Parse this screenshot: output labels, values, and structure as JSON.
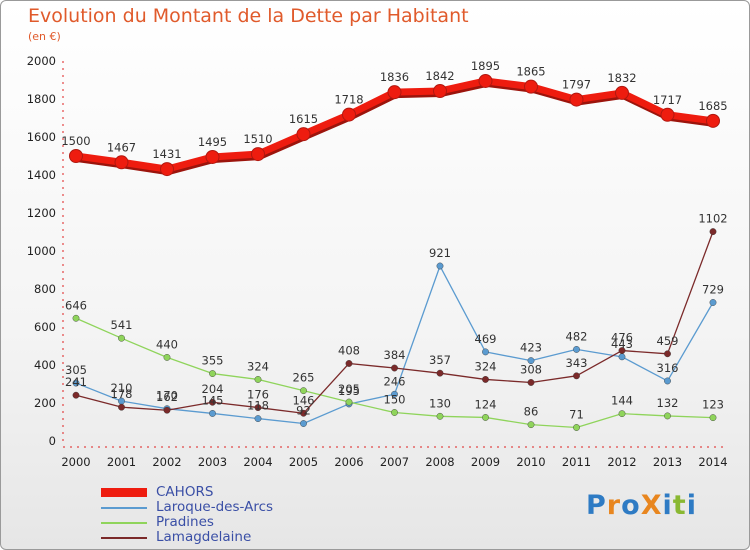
{
  "header": {
    "title": "Evolution du Montant de la Dette par Habitant",
    "unit": "(en €)"
  },
  "logo": {
    "text": "ProXiti",
    "colors": [
      "#2e7bc4",
      "#e8861f",
      "#2e7bc4",
      "#e8861f",
      "#2e7bc4",
      "#8ab832",
      "#2e7bc4"
    ]
  },
  "chart_data": {
    "type": "line",
    "title": "Evolution du Montant de la Dette par Habitant",
    "ylabel": "(en €)",
    "xlabel": "",
    "ylim": [
      0,
      2000
    ],
    "yticks": [
      0,
      200,
      400,
      600,
      800,
      1000,
      1200,
      1400,
      1600,
      1800,
      2000
    ],
    "grid": false,
    "legend_position": "bottom-left",
    "categories": [
      "2000",
      "2001",
      "2002",
      "2003",
      "2004",
      "2005",
      "2006",
      "2007",
      "2008",
      "2009",
      "2010",
      "2011",
      "2012",
      "2013",
      "2014"
    ],
    "series": [
      {
        "name": "CAHORS",
        "color": "#ee1c0f",
        "values": [
          1500,
          1467,
          1431,
          1495,
          1510,
          1615,
          1718,
          1836,
          1842,
          1895,
          1865,
          1797,
          1832,
          1717,
          1685
        ]
      },
      {
        "name": "Laroque-des-Arcs",
        "color": "#5b9bd0",
        "values": [
          305,
          210,
          170,
          145,
          118,
          92,
          195,
          246,
          921,
          469,
          423,
          482,
          443,
          316,
          729
        ]
      },
      {
        "name": "Pradines",
        "color": "#8fd45b",
        "values": [
          646,
          541,
          440,
          355,
          324,
          265,
          205,
          150,
          130,
          124,
          86,
          71,
          144,
          132,
          123
        ]
      },
      {
        "name": "Lamagdelaine",
        "color": "#7b2a2a",
        "values": [
          241,
          178,
          162,
          204,
          176,
          146,
          408,
          384,
          357,
          324,
          308,
          343,
          476,
          459,
          1102
        ]
      }
    ]
  }
}
